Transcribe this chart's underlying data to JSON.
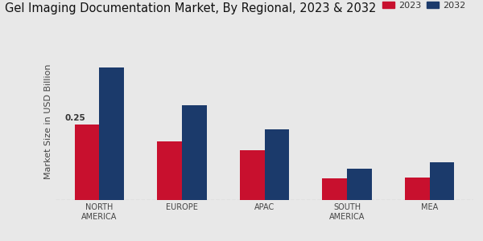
{
  "title": "Gel Imaging Documentation Market, By Regional, 2023 & 2032",
  "ylabel": "Market Size in USD Billion",
  "categories": [
    "NORTH\nAMERICA",
    "EUROPE",
    "APAC",
    "SOUTH\nAMERICA",
    "MEA"
  ],
  "values_2023": [
    0.25,
    0.195,
    0.165,
    0.072,
    0.075
  ],
  "values_2032": [
    0.44,
    0.315,
    0.235,
    0.105,
    0.125
  ],
  "color_2023": "#c8102e",
  "color_2032": "#1b3a6b",
  "background_color": "#e8e8e8",
  "annotation_text": "0.25",
  "ylim_max": 0.52,
  "bar_width": 0.3,
  "legend_labels": [
    "2023",
    "2032"
  ],
  "title_fontsize": 10.5,
  "axis_label_fontsize": 8,
  "tick_fontsize": 7,
  "bottom_stripe_color": "#c8102e"
}
